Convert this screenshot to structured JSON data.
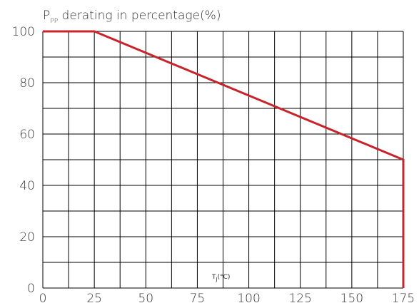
{
  "chart_data": {
    "type": "line",
    "title": {
      "main": "P",
      "sub": "PP",
      "rest": " derating in percentage(%)"
    },
    "xlabel": {
      "main": "T",
      "sub": "J",
      "rest": "(°C)"
    },
    "ylabel": "",
    "xlim": [
      0,
      175
    ],
    "ylim": [
      0,
      100
    ],
    "x_ticks": [
      "0",
      "25",
      "50",
      "75",
      "100",
      "125",
      "150",
      "175"
    ],
    "y_ticks": [
      "0",
      "20",
      "40",
      "60",
      "80",
      "100"
    ],
    "grid": true,
    "grid_step": {
      "x": 12.5,
      "y": 10
    },
    "series": [
      {
        "color": "#c8242b",
        "points": [
          {
            "x": 0,
            "y": 100
          },
          {
            "x": 25,
            "y": 100
          },
          {
            "x": 175,
            "y": 50
          },
          {
            "x": 175,
            "y": 0
          }
        ]
      }
    ]
  }
}
